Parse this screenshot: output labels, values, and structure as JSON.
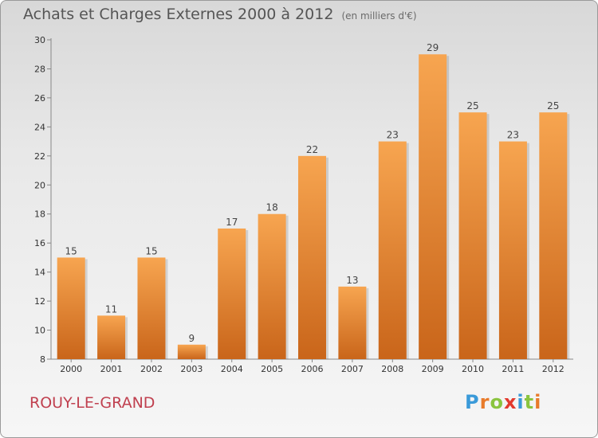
{
  "header": {
    "title": "Achats et Charges Externes 2000 à 2012",
    "unit": "(en milliers d'€)"
  },
  "footer": {
    "commune": "ROUY-LE-GRAND",
    "logo_letters": [
      "P",
      "r",
      "o",
      "x",
      "i",
      "t",
      "i"
    ],
    "logo_colors": [
      "#3a9ad9",
      "#e87b2b",
      "#8ac43f",
      "#e23a2e",
      "#3a9ad9",
      "#8ac43f",
      "#e87b2b"
    ]
  },
  "chart_data": {
    "type": "bar",
    "title": "Achats et Charges Externes 2000 à 2012",
    "subtitle": "(en milliers d'€)",
    "categories": [
      "2000",
      "2001",
      "2002",
      "2003",
      "2004",
      "2005",
      "2006",
      "2007",
      "2008",
      "2009",
      "2010",
      "2011",
      "2012"
    ],
    "values": [
      15,
      11,
      15,
      9,
      17,
      18,
      22,
      13,
      23,
      29,
      25,
      23,
      25
    ],
    "ylim": [
      8,
      30
    ],
    "yticks": [
      8,
      10,
      12,
      14,
      16,
      18,
      20,
      22,
      24,
      26,
      28,
      30
    ],
    "grid": false,
    "bar_color_top": "#f7a550",
    "bar_color_bottom": "#c9651a"
  }
}
